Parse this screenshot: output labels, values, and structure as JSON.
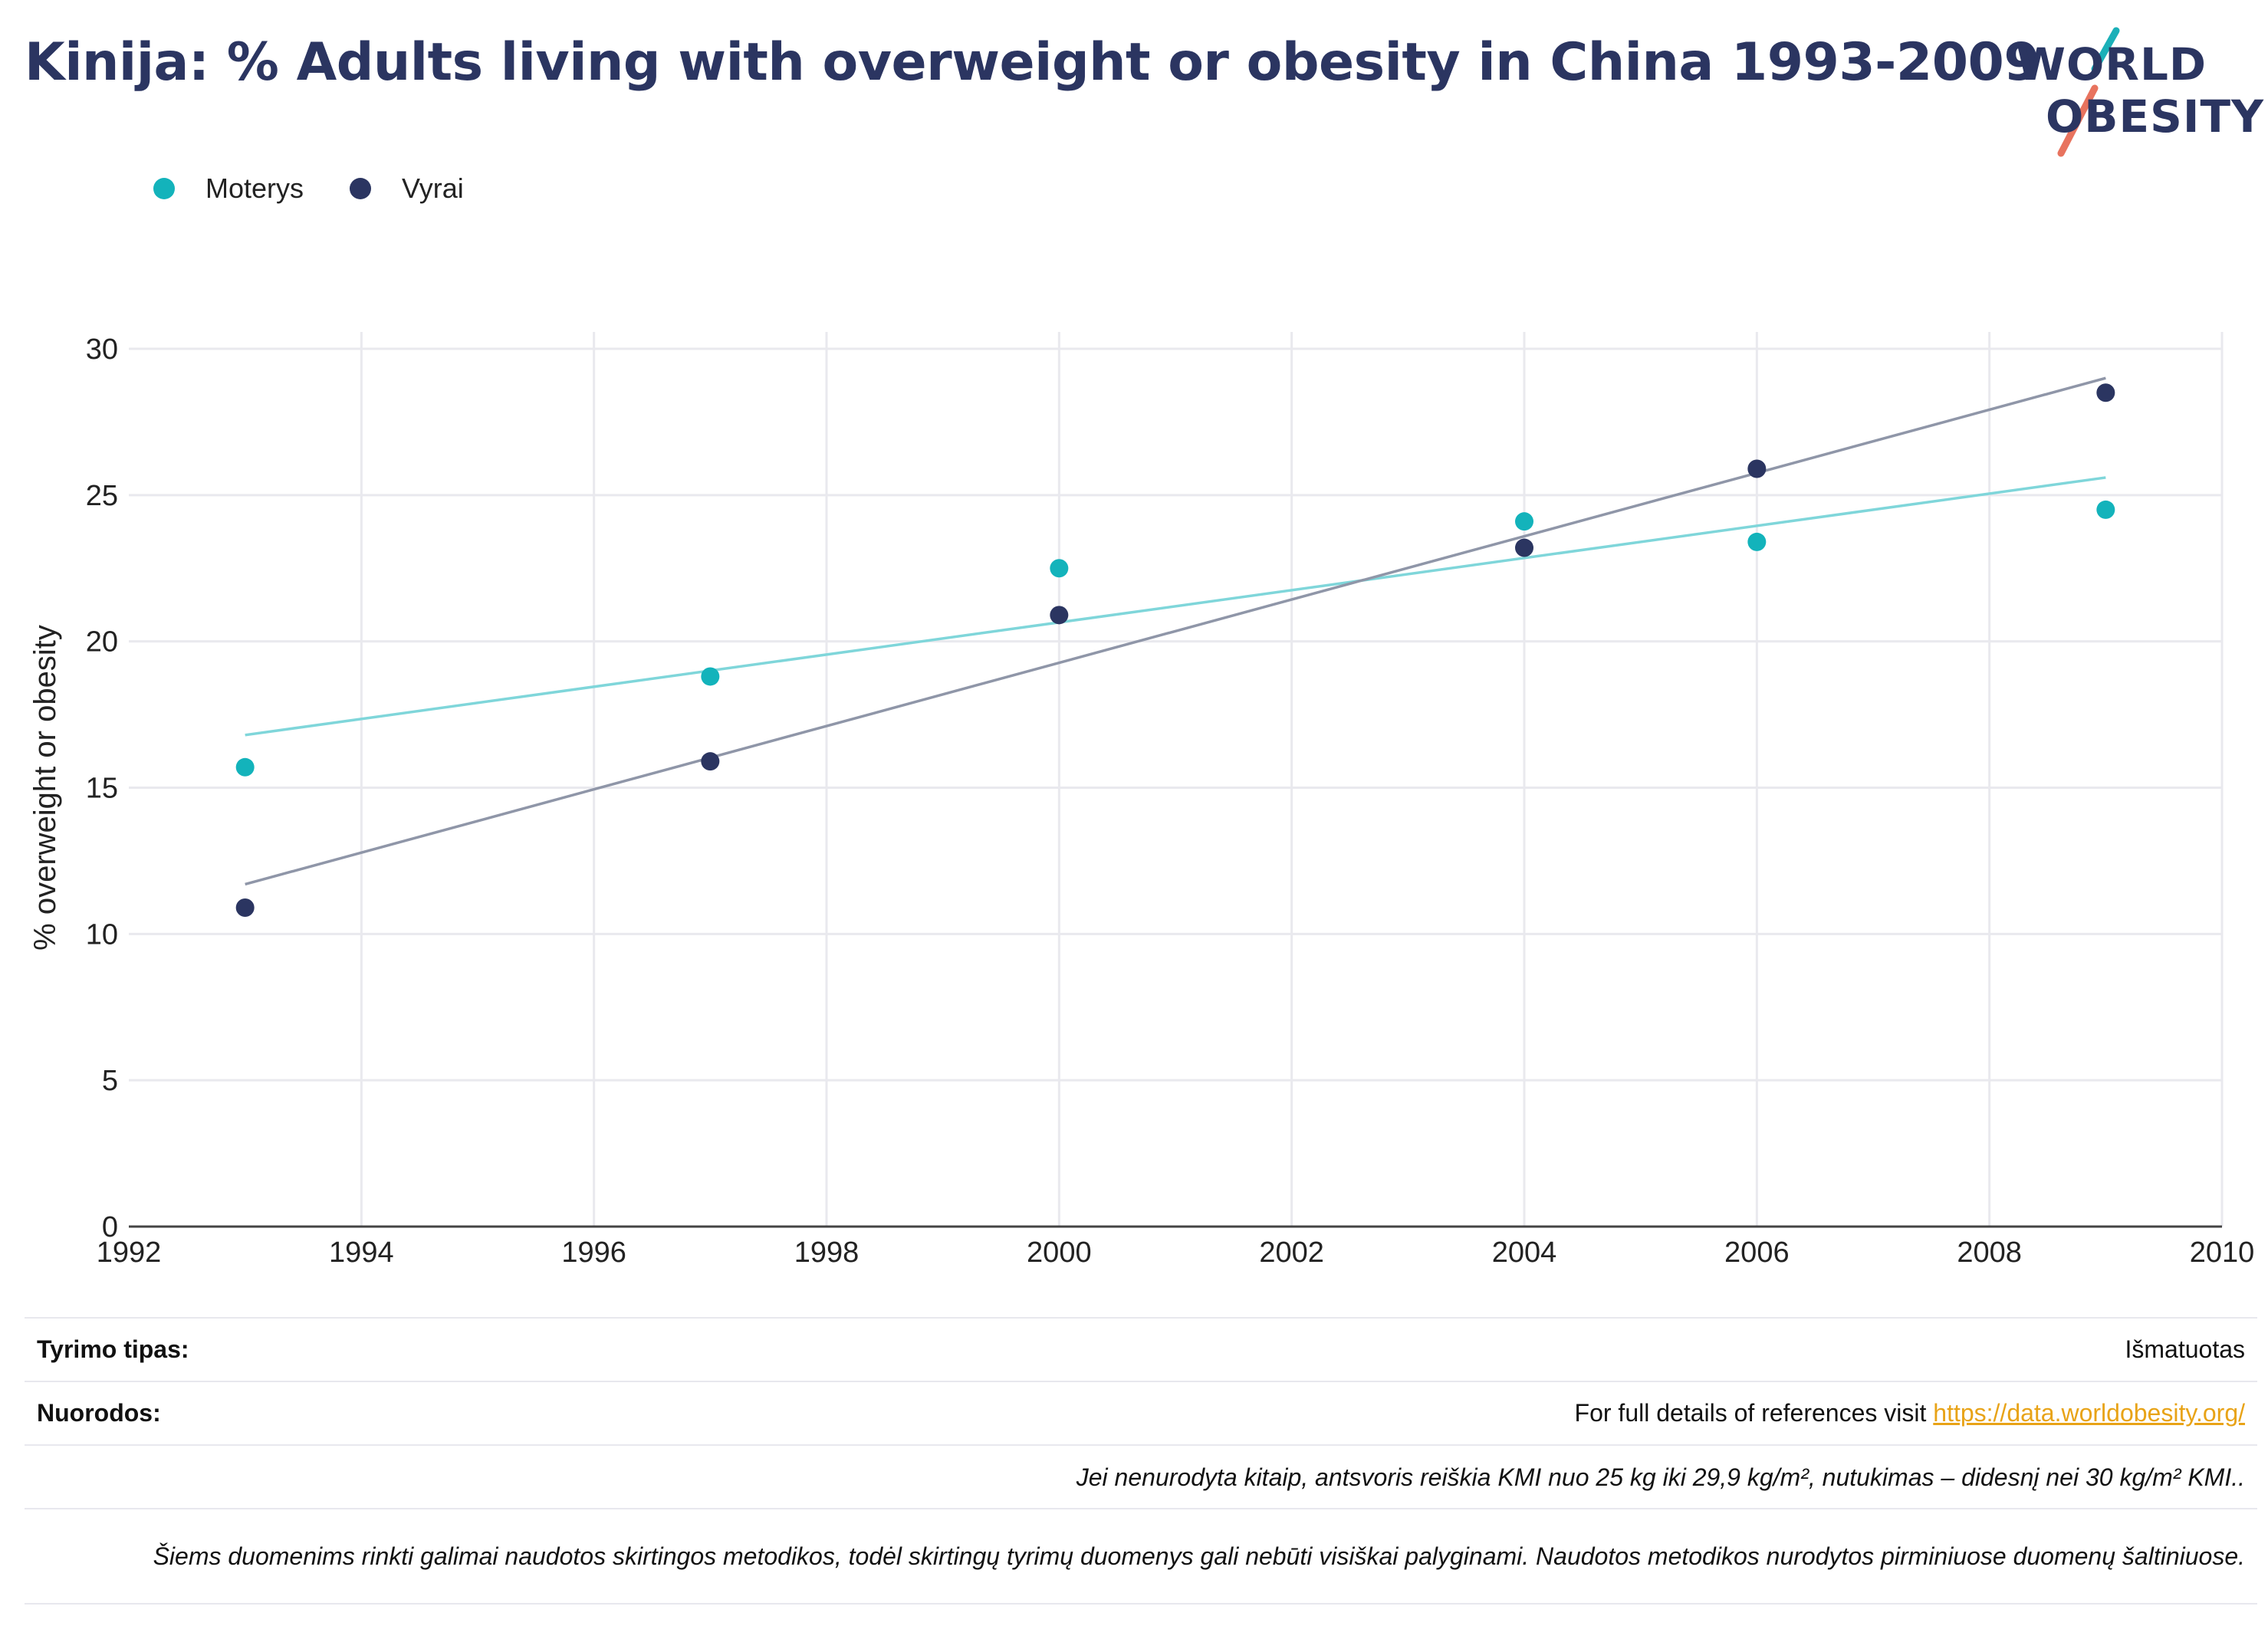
{
  "title": "Kinija: % Adults living with overweight or obesity in China 1993-2009",
  "logo": {
    "line1": "WORLD",
    "line2": "OBESITY",
    "accent_teal": "#1bb0b8",
    "accent_red": "#e8735e"
  },
  "legend": [
    {
      "name": "Moterys",
      "color": "#13b3bb"
    },
    {
      "name": "Vyrai",
      "color": "#2b3561"
    }
  ],
  "chart_data": {
    "type": "scatter",
    "ylabel": "% overweight or obesity",
    "xlabel": "",
    "xlim": [
      1992,
      2010
    ],
    "ylim": [
      0,
      30
    ],
    "x_ticks": [
      1992,
      1994,
      1996,
      1998,
      2000,
      2002,
      2004,
      2006,
      2008,
      2010
    ],
    "y_ticks": [
      0,
      5,
      10,
      15,
      20,
      25,
      30
    ],
    "grid": true,
    "legend_position": "top-left",
    "series": [
      {
        "name": "Moterys",
        "color": "#13b3bb",
        "trend_color": "#7fd6da",
        "points": [
          {
            "x": 1993,
            "y": 15.7
          },
          {
            "x": 1997,
            "y": 18.8
          },
          {
            "x": 2000,
            "y": 22.5
          },
          {
            "x": 2004,
            "y": 24.1
          },
          {
            "x": 2006,
            "y": 23.4
          },
          {
            "x": 2009,
            "y": 24.5
          }
        ],
        "trend": [
          {
            "x": 1993,
            "y": 16.8
          },
          {
            "x": 2009,
            "y": 25.6
          }
        ]
      },
      {
        "name": "Vyrai",
        "color": "#2b3561",
        "trend_color": "#8f96a8",
        "points": [
          {
            "x": 1993,
            "y": 10.9
          },
          {
            "x": 1997,
            "y": 15.9
          },
          {
            "x": 2000,
            "y": 20.9
          },
          {
            "x": 2004,
            "y": 23.2
          },
          {
            "x": 2006,
            "y": 25.9
          },
          {
            "x": 2009,
            "y": 28.5
          }
        ],
        "trend": [
          {
            "x": 1993,
            "y": 11.7
          },
          {
            "x": 2009,
            "y": 29.0
          }
        ]
      }
    ]
  },
  "footer": {
    "survey_label": "Tyrimo tipas:",
    "survey_value": "Išmatuotas",
    "refs_label": "Nuorodos:",
    "refs_text": "For full details of references visit ",
    "refs_link": "https://data.worldobesity.org/",
    "note1": "Jei nenurodyta kitaip, antsvoris reiškia KMI nuo 25 kg iki 29,9 kg/m², nutukimas – didesnį nei 30 kg/m² KMI..",
    "note2": "Šiems duomenims rinkti galimai naudotos skirtingos metodikos, todėl skirtingų tyrimų duomenys gali nebūti visiškai palyginami. Naudotos metodikos nurodytos pirminiuose duomenų šaltiniuose."
  }
}
